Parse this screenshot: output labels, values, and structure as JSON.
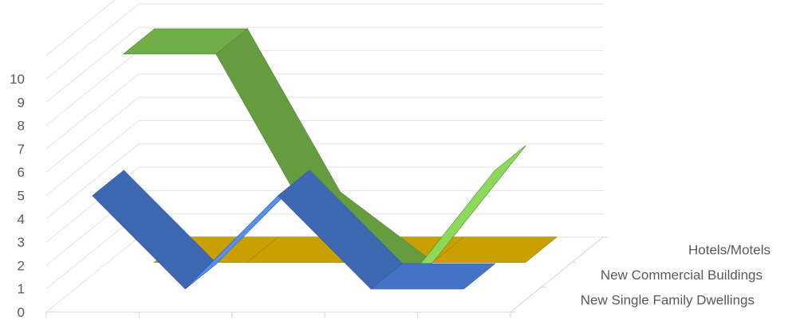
{
  "chart_data": {
    "type": "line",
    "subtype": "3d-line",
    "title": "",
    "xlabel": "",
    "ylabel": "",
    "ylim": [
      0,
      10
    ],
    "y_ticks": [
      "0",
      "1",
      "2",
      "3",
      "4",
      "5",
      "6",
      "7",
      "8",
      "9",
      "10"
    ],
    "categories": [
      "",
      "",
      "",
      "",
      ""
    ],
    "grid": true,
    "series": [
      {
        "name": "New Single Family Dwellings",
        "color": "#4472C4",
        "values": [
          5,
          1,
          5,
          1,
          1
        ]
      },
      {
        "name": "New Commercial Buildings",
        "color": "#70AD47",
        "values": [
          10,
          10,
          3,
          0,
          5
        ]
      },
      {
        "name": "Hotels/Motels",
        "color": "#C9A000",
        "values": [
          0,
          0,
          0,
          0,
          0
        ]
      }
    ]
  }
}
